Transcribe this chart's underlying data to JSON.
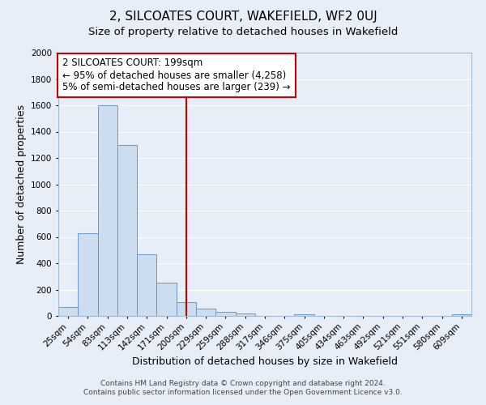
{
  "title": "2, SILCOATES COURT, WAKEFIELD, WF2 0UJ",
  "subtitle": "Size of property relative to detached houses in Wakefield",
  "xlabel": "Distribution of detached houses by size in Wakefield",
  "ylabel": "Number of detached properties",
  "footer1": "Contains HM Land Registry data © Crown copyright and database right 2024.",
  "footer2": "Contains public sector information licensed under the Open Government Licence v3.0.",
  "bar_labels": [
    "25sqm",
    "54sqm",
    "83sqm",
    "113sqm",
    "142sqm",
    "171sqm",
    "200sqm",
    "229sqm",
    "259sqm",
    "288sqm",
    "317sqm",
    "346sqm",
    "375sqm",
    "405sqm",
    "434sqm",
    "463sqm",
    "492sqm",
    "521sqm",
    "551sqm",
    "580sqm",
    "609sqm"
  ],
  "bar_values": [
    65,
    630,
    1600,
    1300,
    470,
    250,
    105,
    55,
    30,
    20,
    0,
    0,
    15,
    0,
    0,
    0,
    0,
    0,
    0,
    0,
    15
  ],
  "bar_color": "#ccddf0",
  "bar_edgecolor": "#6699cc",
  "background_color": "#e8eef8",
  "grid_color": "#ffffff",
  "vline_x": 6,
  "vline_color": "#cc0000",
  "ylim": [
    0,
    2000
  ],
  "yticks": [
    0,
    200,
    400,
    600,
    800,
    1000,
    1200,
    1400,
    1600,
    1800,
    2000
  ],
  "annotation_title": "2 SILCOATES COURT: 199sqm",
  "annotation_line1": "← 95% of detached houses are smaller (4,258)",
  "annotation_line2": "5% of semi-detached houses are larger (239) →",
  "annotation_box_edgecolor": "#cc0000",
  "title_fontsize": 11,
  "subtitle_fontsize": 9.5,
  "xlabel_fontsize": 9,
  "ylabel_fontsize": 9,
  "tick_fontsize": 7.5,
  "annotation_fontsize": 8.5,
  "footer_fontsize": 6.5
}
